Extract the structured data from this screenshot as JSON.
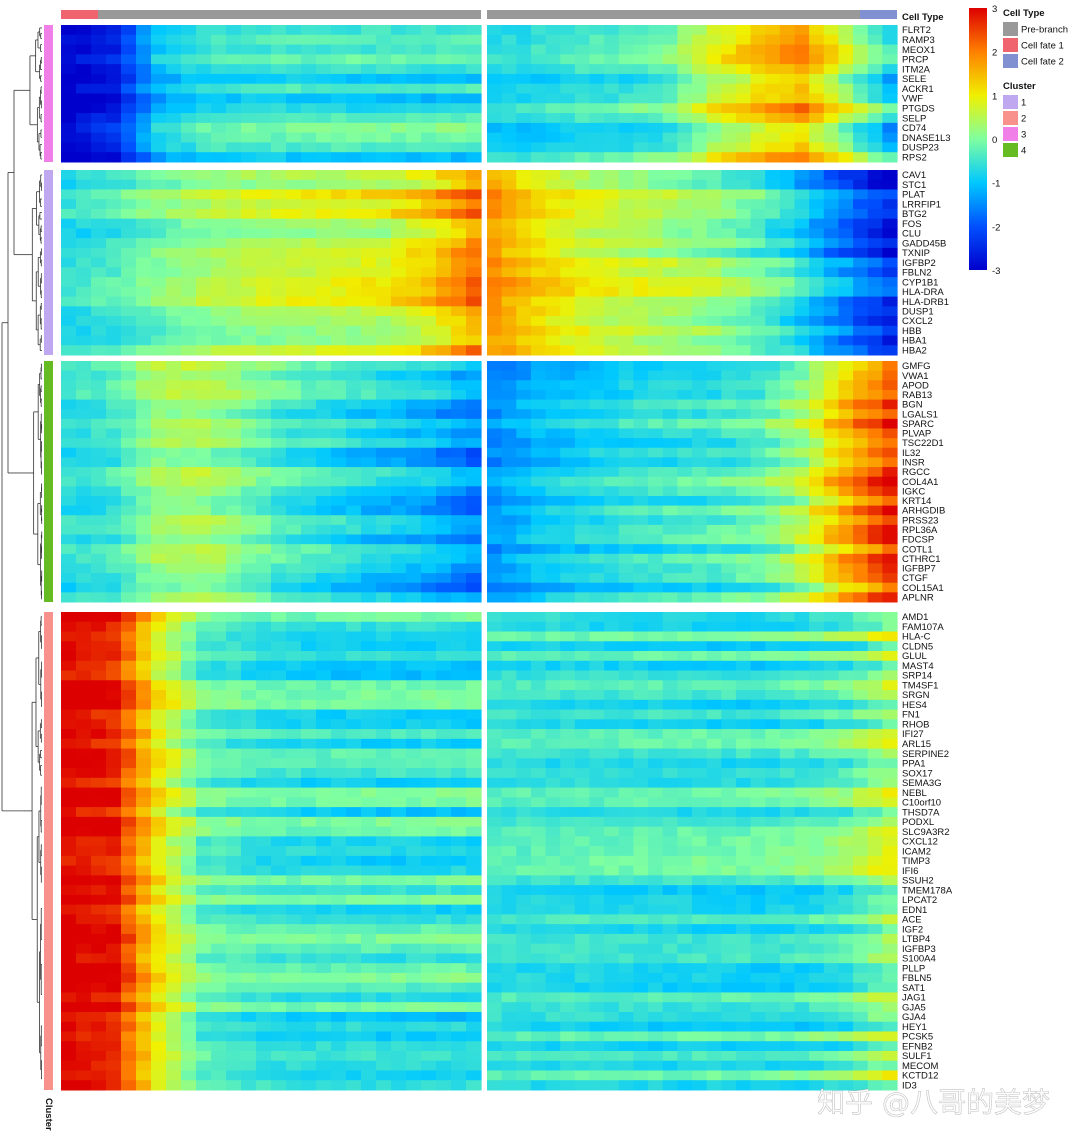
{
  "chart_data": {
    "type": "heatmap",
    "title": "",
    "xlabel": "",
    "ylabel": "",
    "color_scale": {
      "min": -3,
      "max": 3,
      "ticks": [
        "3",
        "2",
        "1",
        "0",
        "-1",
        "-2",
        "-3"
      ],
      "colors": [
        "#0000cc",
        "#0050ff",
        "#00c8ff",
        "#7fffa0",
        "#f0f000",
        "#ff8000",
        "#dd0000"
      ]
    },
    "top_annotation": {
      "label": "Cell Type",
      "left_panel": [
        "Cell fate 1",
        "Pre-branch"
      ],
      "right_panel": [
        "Pre-branch",
        "Cell fate 2"
      ]
    },
    "row_annotation": {
      "label": "Cluster"
    },
    "legend": {
      "cell_type_title": "Cell Type",
      "cell_type_entries": [
        {
          "name": "Pre-branch",
          "color": "#999999"
        },
        {
          "name": "Cell fate 1",
          "color": "#f06470"
        },
        {
          "name": "Cell fate 2",
          "color": "#8090d0"
        }
      ],
      "cluster_title": "Cluster",
      "cluster_entries": [
        {
          "name": "1",
          "color": "#c0a8f0"
        },
        {
          "name": "2",
          "color": "#f8908c"
        },
        {
          "name": "3",
          "color": "#f080e8"
        },
        {
          "name": "4",
          "color": "#66bb22"
        }
      ]
    },
    "clusters": [
      {
        "cluster": "3",
        "genes": [
          "FLRT2",
          "RAMP3",
          "MEOX1",
          "PRCP",
          "ITM2A",
          "SELE",
          "ACKR1",
          "VWF",
          "PTGDS",
          "SELP",
          "CD74",
          "DNASE1L3",
          "DUSP23",
          "RPS2"
        ],
        "left_profile": [
          -3,
          -2.6,
          -1,
          -0.6,
          -0.5,
          -0.5,
          -0.5,
          -0.5,
          -0.5,
          -0.5
        ],
        "right_profile": [
          -0.8,
          -0.7,
          -0.5,
          -0.5,
          -0.2,
          0.6,
          1.2,
          1.6,
          0.4,
          -0.8
        ]
      },
      {
        "cluster": "1",
        "genes": [
          "CAV1",
          "STC1",
          "PLAT",
          "LRRFIP1",
          "BTG2",
          "FOS",
          "CLU",
          "GADD45B",
          "TXNIP",
          "IGFBP2",
          "FBLN2",
          "CYP1B1",
          "HLA-DRA",
          "HLA-DRB1",
          "DUSP1",
          "CXCL2",
          "HBB",
          "HBA1",
          "HBA2"
        ],
        "left_profile": [
          -0.6,
          -0.4,
          0,
          0.3,
          0.5,
          0.6,
          0.7,
          0.8,
          1.2,
          2.0
        ],
        "right_profile": [
          1.8,
          1.2,
          0.8,
          0.6,
          0.4,
          0.2,
          -0.2,
          -0.8,
          -1.6,
          -2.4
        ]
      },
      {
        "cluster": "4",
        "genes": [
          "GMFG",
          "VWA1",
          "APOD",
          "RAB13",
          "BGN",
          "LGALS1",
          "SPARC",
          "PLVAP",
          "TSC22D1",
          "IL32",
          "INSR",
          "RGCC",
          "COL4A1",
          "IGKC",
          "KRT14",
          "ARHGDIB",
          "PRSS23",
          "RPL36A",
          "FDCSP",
          "COTL1",
          "CTHRC1",
          "IGFBP7",
          "CTGF",
          "COL15A1",
          "APLNR"
        ],
        "left_profile": [
          -0.6,
          -0.4,
          0.3,
          0.4,
          0,
          -0.4,
          -0.6,
          -0.8,
          -1.0,
          -1.4
        ],
        "right_profile": [
          -1.4,
          -1.0,
          -0.8,
          -0.6,
          -0.5,
          -0.4,
          -0.2,
          0.4,
          1.6,
          2.6
        ]
      },
      {
        "cluster": "2",
        "genes": [
          "AMD1",
          "FAM107A",
          "HLA-C",
          "CLDN5",
          "GLUL",
          "MAST4",
          "SRP14",
          "TM4SF1",
          "SRGN",
          "HES4",
          "FN1",
          "RHOB",
          "IFI27",
          "ARL15",
          "SERPINE2",
          "PPA1",
          "SOX17",
          "SEMA3G",
          "NEBL",
          "C10orf10",
          "THSD7A",
          "PODXL",
          "SLC9A3R2",
          "CXCL12",
          "ICAM2",
          "TIMP3",
          "IFI6",
          "SSUH2",
          "TMEM178A",
          "LPCAT2",
          "EDN1",
          "ACE",
          "IGF2",
          "LTBP4",
          "IGFBP3",
          "S100A4",
          "PLLP",
          "FBLN5",
          "SAT1",
          "JAG1",
          "GJA5",
          "GJA4",
          "HEY1",
          "PCSK5",
          "EFNB2",
          "SULF1",
          "MECOM",
          "KCTD12",
          "ID3"
        ],
        "left_profile": [
          3,
          2.8,
          1.0,
          -0.2,
          -0.4,
          -0.5,
          -0.5,
          -0.5,
          -0.5,
          -0.5
        ],
        "right_profile": [
          -0.5,
          -0.5,
          -0.5,
          -0.5,
          -0.5,
          -0.5,
          -0.5,
          -0.4,
          -0.2,
          0.4
        ]
      }
    ]
  },
  "watermark": "知乎 @八哥的美梦"
}
